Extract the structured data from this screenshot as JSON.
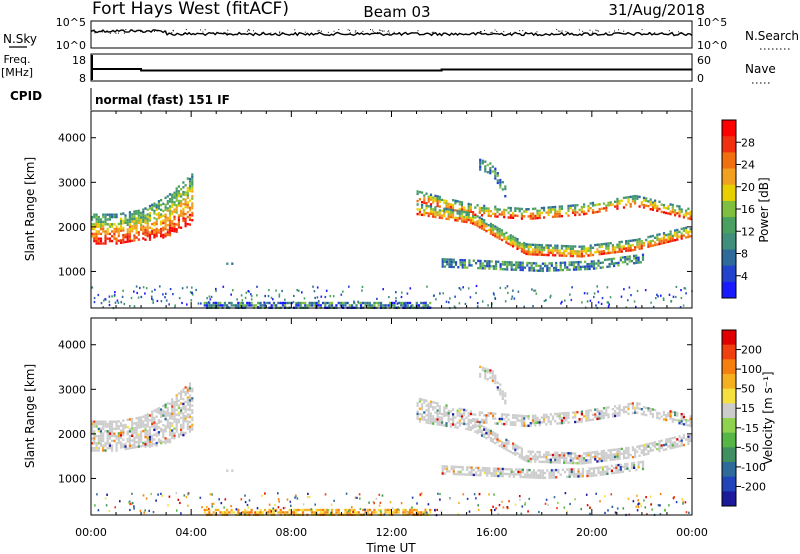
{
  "header": {
    "station": "Fort Hays West (fitACF)",
    "beam": "Beam 03",
    "date": "31/Aug/2018"
  },
  "panels": {
    "nsky": {
      "label": "N.Sky",
      "ticks": [
        "10^5",
        "10^0"
      ]
    },
    "nsearch": {
      "label": "N.Search",
      "ticks": [
        "10^5",
        "10^0"
      ],
      "legend_line": "dotted"
    },
    "freq": {
      "label_line1": "Freq.",
      "label_line2": "[MHz]",
      "ticks": [
        "18",
        "8"
      ]
    },
    "nave": {
      "label": "Nave",
      "ticks": [
        "60",
        "0"
      ],
      "legend_line": "dotted"
    },
    "cpid": {
      "label": "CPID",
      "program": "normal (fast) 151 IF"
    }
  },
  "chart_data": [
    {
      "type": "heatmap",
      "panel": "power",
      "ylabel": "Slant Range [km]",
      "xlabel": "",
      "x_ticks": [
        "00:00",
        "04:00",
        "08:00",
        "12:00",
        "16:00",
        "20:00",
        "00:00"
      ],
      "y_ticks": [
        "1000",
        "2000",
        "3000",
        "4000"
      ],
      "ylim": [
        180,
        4600
      ],
      "xlim_hours": [
        0,
        24
      ],
      "colorbar": {
        "label": "Power [dB]",
        "ticks": [
          "4",
          "8",
          "12",
          "16",
          "20",
          "24",
          "28"
        ],
        "range": [
          0,
          30
        ],
        "colors": [
          "#1a1aff",
          "#2244cc",
          "#2f6b9a",
          "#3f8f7a",
          "#4aa060",
          "#7fbf40",
          "#e8d000",
          "#f2a020",
          "#f07010",
          "#f03010",
          "#ff0000"
        ]
      },
      "echo_regions": [
        {
          "t_start": 0.0,
          "t_end": 4.0,
          "r_start": [
            1600,
            1650,
            1700,
            1800,
            2100
          ],
          "r_end": [
            2300,
            2300,
            2400,
            2700,
            3200
          ],
          "strong": true
        },
        {
          "t_start": 5.4,
          "t_end": 5.6,
          "r_start": [
            1100
          ],
          "r_end": [
            1200
          ],
          "strong": false
        },
        {
          "t_start": 13.0,
          "t_end": 23.9,
          "band": "descending",
          "r_center": [
            2400,
            2200,
            1500,
            1450,
            1600,
            1900
          ],
          "strong": true
        },
        {
          "t_start": 14.0,
          "t_end": 22.0,
          "band": "lower",
          "r_center": [
            1200,
            1150,
            1100,
            1150,
            1300
          ],
          "strong": false
        },
        {
          "t_start": 15.5,
          "t_end": 16.5,
          "band": "plume",
          "r_center": [
            3400,
            3300,
            2800
          ],
          "strong": false
        },
        {
          "t_start": 4.5,
          "t_end": 13.5,
          "band": "ground",
          "r_center": [
            260
          ],
          "strong": false
        }
      ]
    },
    {
      "type": "heatmap",
      "panel": "velocity",
      "ylabel": "Slant Range [km]",
      "xlabel": "Time UT",
      "x_ticks": [
        "00:00",
        "04:00",
        "08:00",
        "12:00",
        "16:00",
        "20:00",
        "00:00"
      ],
      "y_ticks": [
        "1000",
        "2000",
        "3000",
        "4000"
      ],
      "ylim": [
        180,
        4600
      ],
      "xlim_hours": [
        0,
        24
      ],
      "colorbar": {
        "label": "Velocity [m s⁻¹]",
        "ticks": [
          "200",
          "100",
          "50",
          "15",
          "-15",
          "-50",
          "-100",
          "-200"
        ],
        "range": [
          -250,
          250
        ],
        "colors": [
          "#1a1a9a",
          "#2244bb",
          "#2f6b9a",
          "#3f8f60",
          "#55b545",
          "#8fd24f",
          "#cccccc",
          "#f5e040",
          "#f5b020",
          "#f58010",
          "#f04010",
          "#e00000"
        ]
      }
    }
  ]
}
